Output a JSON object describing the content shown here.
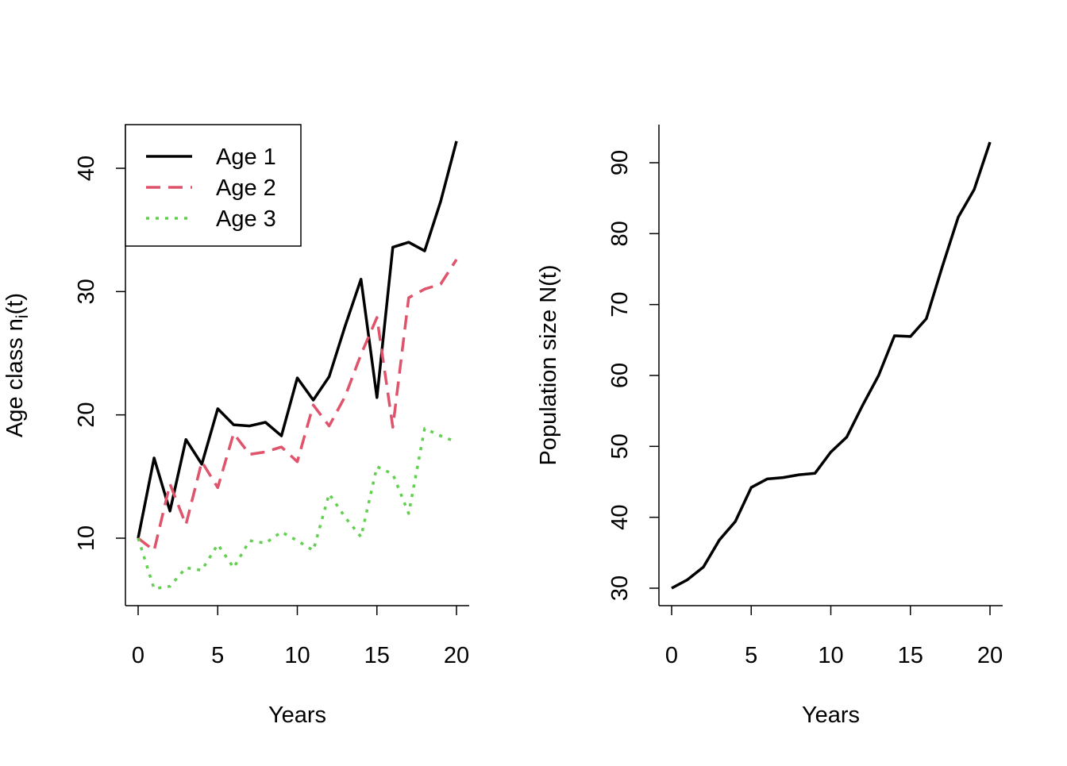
{
  "chart_data": [
    {
      "type": "line",
      "xlabel": "Years",
      "ylabel_main": "Age class  n",
      "ylabel_sub": "i",
      "ylabel_tail": "(t)",
      "xlim": [
        0,
        20
      ],
      "ylim": [
        4.5,
        43.5
      ],
      "x_ticks": [
        "0",
        "5",
        "10",
        "15",
        "20"
      ],
      "y_ticks": [
        "10",
        "20",
        "30",
        "40"
      ],
      "legend_position": "top-left",
      "x": [
        0,
        1,
        2,
        3,
        4,
        5,
        6,
        7,
        8,
        9,
        10,
        11,
        12,
        13,
        14,
        15,
        16,
        17,
        18,
        19,
        20
      ],
      "series": [
        {
          "name": "Age 1",
          "color": "#000000",
          "dash": "solid",
          "values": [
            10,
            16.5,
            12.2,
            18.0,
            16.0,
            20.5,
            19.2,
            19.1,
            19.4,
            18.3,
            23.0,
            21.2,
            23.1,
            27.2,
            31.0,
            21.4,
            33.6,
            34.0,
            33.3,
            37.3,
            42.2
          ]
        },
        {
          "name": "Age 2",
          "color": "#DF536B",
          "dash": "dashed",
          "values": [
            10,
            9.0,
            14.4,
            11.1,
            16.2,
            14.1,
            18.5,
            16.8,
            17.0,
            17.4,
            16.2,
            20.8,
            19.1,
            21.5,
            24.9,
            27.9,
            19.0,
            29.5,
            30.2,
            30.6,
            32.6
          ]
        },
        {
          "name": "Age  3",
          "color": "#61D04F",
          "dash": "dotted",
          "values": [
            10,
            5.9,
            6.1,
            7.6,
            7.4,
            9.5,
            7.6,
            9.8,
            9.6,
            10.5,
            9.8,
            9.0,
            13.6,
            11.7,
            10.1,
            15.8,
            15.2,
            12.0,
            18.9,
            18.3,
            17.8
          ]
        }
      ]
    },
    {
      "type": "line",
      "xlabel": "Years",
      "ylabel": "Population size N(t)",
      "xlim": [
        0,
        20
      ],
      "ylim": [
        26,
        95.5
      ],
      "x_ticks": [
        "0",
        "5",
        "10",
        "15",
        "20"
      ],
      "y_ticks": [
        "30",
        "40",
        "50",
        "60",
        "70",
        "80",
        "90"
      ],
      "x": [
        0,
        1,
        2,
        3,
        4,
        5,
        6,
        7,
        8,
        9,
        10,
        11,
        12,
        13,
        14,
        15,
        16,
        17,
        18,
        19,
        20
      ],
      "series": [
        {
          "color": "#000000",
          "dash": "solid",
          "values": [
            30.0,
            31.2,
            33.0,
            36.8,
            39.4,
            44.2,
            45.4,
            45.6,
            46.0,
            46.2,
            49.2,
            51.3,
            55.8,
            60.0,
            65.6,
            65.5,
            68.0,
            75.3,
            82.3,
            86.2,
            92.9
          ]
        }
      ]
    }
  ]
}
